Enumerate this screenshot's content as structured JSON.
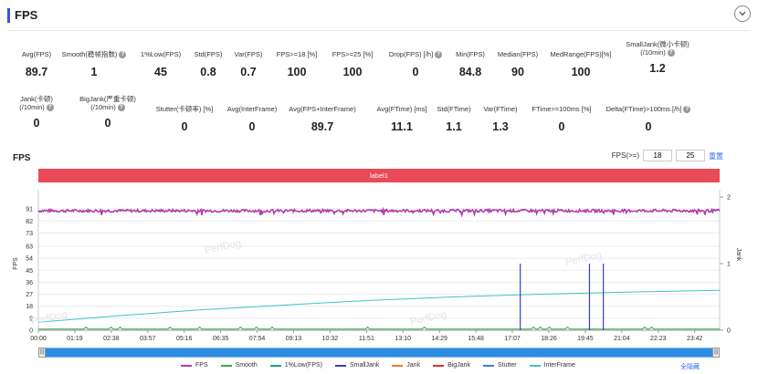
{
  "header": {
    "title": "FPS"
  },
  "stats_row1": [
    {
      "label": "Avg(FPS)",
      "value": "89.7",
      "help": false
    },
    {
      "label": "Smooth(稳帧指数)",
      "value": "1",
      "help": true
    },
    {
      "label": "1%Low(FPS)",
      "value": "45",
      "help": false
    },
    {
      "label": "Std(FPS)",
      "value": "0.8",
      "help": false
    },
    {
      "label": "Var(FPS)",
      "value": "0.7",
      "help": false
    },
    {
      "label": "FPS>=18 [%]",
      "value": "100",
      "help": false
    },
    {
      "label": "FPS>=25 [%]",
      "value": "100",
      "help": false
    },
    {
      "label": "Drop(FPS) [/h]",
      "value": "0",
      "help": true
    },
    {
      "label": "Min(FPS)",
      "value": "84.8",
      "help": false
    },
    {
      "label": "Median(FPS)",
      "value": "90",
      "help": false
    },
    {
      "label": "MedRange(FPS)[%]",
      "value": "100",
      "help": false
    },
    {
      "label": "SmallJank(微小卡顿)",
      "label2": "(/10min)",
      "value": "1.2",
      "help": true
    }
  ],
  "stats_row2": [
    {
      "label": "Jank(卡顿)",
      "label2": "(/10min)",
      "value": "0",
      "help": true
    },
    {
      "label": "BigJank(严重卡顿)",
      "label2": "(/10min)",
      "value": "0",
      "help": true
    },
    {
      "label": "Stutter(卡顿率) [%]",
      "value": "0",
      "help": false
    },
    {
      "label": "Avg(InterFrame)",
      "value": "0",
      "help": false
    },
    {
      "label": "Avg(FPS+InterFrame)",
      "value": "89.7",
      "help": false
    },
    {
      "label": "Avg(FTime) [ms]",
      "value": "11.1",
      "help": false
    },
    {
      "label": "Std(FTime)",
      "value": "1.1",
      "help": false
    },
    {
      "label": "Var(FTime)",
      "value": "1.3",
      "help": false
    },
    {
      "label": "FTime>=100ms [%]",
      "value": "0",
      "help": false
    },
    {
      "label": "Delta(FTime)>100ms [/h]",
      "value": "0",
      "help": true
    }
  ],
  "watermark": "PerfDog",
  "chart_section": {
    "title": "FPS",
    "threshold_label": "FPS(>=)",
    "threshold_1": "18",
    "threshold_2": "25",
    "reset_label": "重置",
    "label_bar": "label1",
    "hide_all": "全隐藏"
  },
  "colors": {
    "fps": "#b03cb0",
    "smooth": "#3aa84a",
    "low1": "#1aa38a",
    "smalljank": "#3b3bd6",
    "jank": "#f07a2a",
    "bigjank": "#e03030",
    "stutter": "#3b7de0",
    "interframe": "#3fc4c4"
  },
  "chart_data": {
    "type": "line",
    "title": "",
    "ylabel": "FPS",
    "y2label": "Jank",
    "ylim": [
      0,
      100
    ],
    "y_ticks": [
      0,
      9,
      18,
      27,
      36,
      45,
      54,
      63,
      73,
      82,
      91
    ],
    "y2lim": [
      0,
      2
    ],
    "y2_ticks": [
      0,
      1,
      2
    ],
    "x_ticks": [
      "00:00",
      "01:19",
      "02:38",
      "03:57",
      "05:16",
      "06:35",
      "07:54",
      "09:13",
      "10:32",
      "11:51",
      "13:10",
      "14:29",
      "15:48",
      "17:07",
      "18:26",
      "19:45",
      "21:04",
      "22:23",
      "23:42"
    ],
    "x_range_minutes": [
      0,
      24.6
    ],
    "grid": true,
    "legend_position": "bottom",
    "series": [
      {
        "name": "FPS",
        "key": "fps",
        "approx_value": 89.7,
        "noise": 1.0
      },
      {
        "name": "Smooth",
        "key": "smooth"
      },
      {
        "name": "1%Low(FPS)",
        "key": "low1"
      },
      {
        "name": "SmallJank",
        "key": "smalljank",
        "spikes_minutes": [
          17.4,
          19.9,
          20.4
        ],
        "spike_value": 1
      },
      {
        "name": "Jank",
        "key": "jank"
      },
      {
        "name": "BigJank",
        "key": "bigjank"
      },
      {
        "name": "Stutter",
        "key": "stutter"
      },
      {
        "name": "InterFrame",
        "key": "interframe",
        "points": [
          [
            0,
            6
          ],
          [
            3,
            11
          ],
          [
            6,
            15.5
          ],
          [
            9,
            19
          ],
          [
            12,
            22.5
          ],
          [
            15,
            25
          ],
          [
            18,
            27
          ],
          [
            21,
            28.5
          ],
          [
            24.6,
            30
          ]
        ]
      }
    ]
  }
}
